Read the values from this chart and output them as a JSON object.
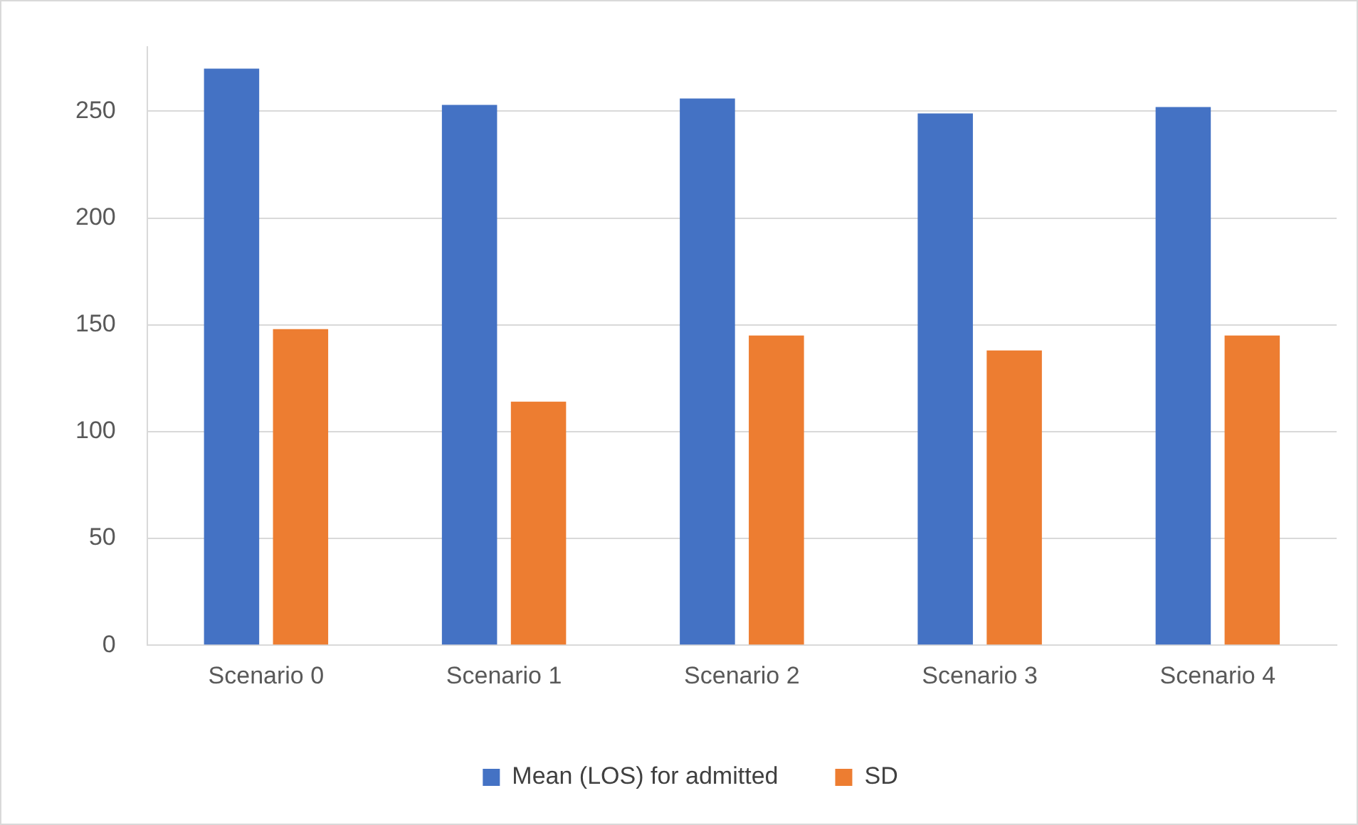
{
  "chart_data": {
    "type": "bar",
    "categories": [
      "Scenario 0",
      "Scenario 1",
      "Scenario 2",
      "Scenario 3",
      "Scenario 4"
    ],
    "series": [
      {
        "name": "Mean (LOS) for admitted",
        "color": "#4472c4",
        "values": [
          270,
          253,
          256,
          249,
          252
        ]
      },
      {
        "name": "SD",
        "color": "#ed7d31",
        "values": [
          148,
          114,
          145,
          138,
          145
        ]
      }
    ],
    "ylim": [
      0,
      280
    ],
    "yticks": [
      0,
      50,
      100,
      150,
      200,
      250
    ],
    "grid": "y",
    "legend": "bottom"
  }
}
